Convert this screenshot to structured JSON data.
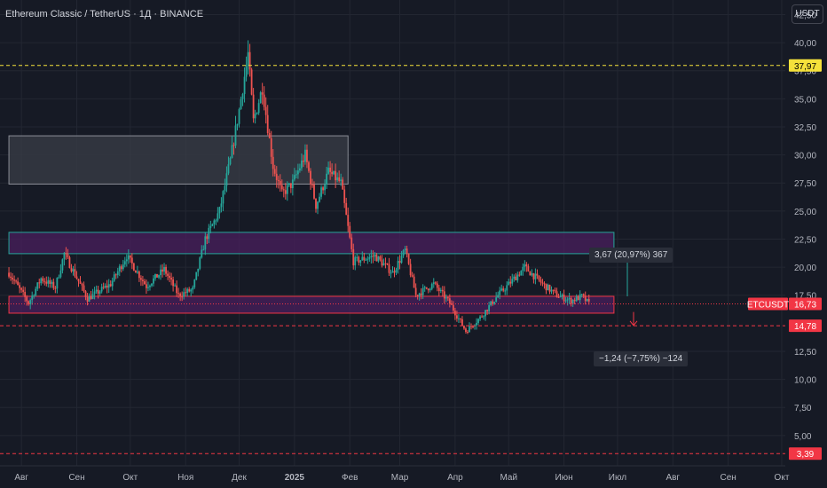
{
  "header": {
    "title": "Ethereum Classic / TetherUS · 1Д · BINANCE",
    "currency_button": "USDT"
  },
  "measure_up": {
    "label": "3,67 (20,97%) 367"
  },
  "measure_down": {
    "label": "−1,24 (−7,75%) −124"
  },
  "price_tags": [
    {
      "text": "37,97",
      "price": 37.97,
      "bg": "#f5e13b",
      "fg": "#000000"
    },
    {
      "text": "16,73",
      "price": 16.73,
      "bg": "#f23645",
      "fg": "#ffffff",
      "prefix": "ETCUSDT"
    },
    {
      "text": "14,78",
      "price": 14.78,
      "bg": "#f23645",
      "fg": "#ffffff"
    },
    {
      "text": "3,39",
      "price": 3.39,
      "bg": "#f23645",
      "fg": "#ffffff"
    }
  ],
  "colors": {
    "up": "#26a69a",
    "down": "#ef5350",
    "background": "#161a25",
    "zone_purple": "#4a1f5e",
    "zone_gray": "#3a3d47"
  },
  "chart_data": {
    "type": "candlestick",
    "title": "Ethereum Classic / TetherUS · 1Д · BINANCE",
    "ylim": [
      2.3,
      43.8
    ],
    "y_ticks": [
      {
        "value": 42.5,
        "label": "42,50"
      },
      {
        "value": 40,
        "label": "40,00"
      },
      {
        "value": 37.5,
        "label": "37,50"
      },
      {
        "value": 35,
        "label": "35,00"
      },
      {
        "value": 32.5,
        "label": "32,50"
      },
      {
        "value": 30,
        "label": "30,00"
      },
      {
        "value": 27.5,
        "label": "27,50"
      },
      {
        "value": 25,
        "label": "25,00"
      },
      {
        "value": 22.5,
        "label": "22,50"
      },
      {
        "value": 20,
        "label": "20,00"
      },
      {
        "value": 17.5,
        "label": "17,50"
      },
      {
        "value": 12.5,
        "label": "12,50"
      },
      {
        "value": 10,
        "label": "10,00"
      },
      {
        "value": 7.5,
        "label": "7,50"
      },
      {
        "value": 5,
        "label": "5,00"
      }
    ],
    "x_ticks": [
      {
        "label": "Авг",
        "date": "2024-08-01"
      },
      {
        "label": "Сен",
        "date": "2024-09-01"
      },
      {
        "label": "Окт",
        "date": "2024-10-01"
      },
      {
        "label": "Ноя",
        "date": "2024-11-01"
      },
      {
        "label": "Дек",
        "date": "2024-12-01"
      },
      {
        "label": "2025",
        "date": "2025-01-01"
      },
      {
        "label": "Фев",
        "date": "2025-02-01"
      },
      {
        "label": "Мар",
        "date": "2025-03-01"
      },
      {
        "label": "Апр",
        "date": "2025-04-01"
      },
      {
        "label": "Май",
        "date": "2025-05-01"
      },
      {
        "label": "Июн",
        "date": "2025-06-01"
      },
      {
        "label": "Июл",
        "date": "2025-07-01"
      },
      {
        "label": "Авг",
        "date": "2025-08-01"
      },
      {
        "label": "Сен",
        "date": "2025-09-01"
      },
      {
        "label": "Окт",
        "date": "2025-10-01"
      }
    ],
    "price_path": [
      [
        "2024-07-25",
        19.5
      ],
      [
        "2024-08-05",
        16.8
      ],
      [
        "2024-08-12",
        19.0
      ],
      [
        "2024-08-20",
        18.2
      ],
      [
        "2024-08-25",
        21.2
      ],
      [
        "2024-09-07",
        17.2
      ],
      [
        "2024-09-20",
        18.5
      ],
      [
        "2024-09-29",
        21.0
      ],
      [
        "2024-10-10",
        18.3
      ],
      [
        "2024-10-20",
        19.8
      ],
      [
        "2024-10-28",
        17.5
      ],
      [
        "2024-11-05",
        18.0
      ],
      [
        "2024-11-12",
        22.5
      ],
      [
        "2024-11-20",
        25.0
      ],
      [
        "2024-11-26",
        29.5
      ],
      [
        "2024-12-01",
        34.0
      ],
      [
        "2024-12-06",
        39.0
      ],
      [
        "2024-12-09",
        33.0
      ],
      [
        "2024-12-14",
        36.0
      ],
      [
        "2024-12-20",
        29.0
      ],
      [
        "2024-12-25",
        26.5
      ],
      [
        "2024-12-31",
        27.5
      ],
      [
        "2025-01-07",
        30.0
      ],
      [
        "2025-01-13",
        25.5
      ],
      [
        "2025-01-20",
        28.5
      ],
      [
        "2025-01-27",
        27.5
      ],
      [
        "2025-02-03",
        20.5
      ],
      [
        "2025-02-15",
        21.0
      ],
      [
        "2025-02-25",
        19.5
      ],
      [
        "2025-03-04",
        21.5
      ],
      [
        "2025-03-10",
        17.5
      ],
      [
        "2025-03-20",
        18.5
      ],
      [
        "2025-03-29",
        16.8
      ],
      [
        "2025-04-07",
        14.3
      ],
      [
        "2025-04-15",
        15.5
      ],
      [
        "2025-04-25",
        17.5
      ],
      [
        "2025-04-30",
        18.3
      ],
      [
        "2025-05-10",
        20.0
      ],
      [
        "2025-05-20",
        18.5
      ],
      [
        "2025-05-28",
        17.5
      ],
      [
        "2025-06-05",
        17.0
      ],
      [
        "2025-06-11",
        17.4
      ],
      [
        "2025-06-15",
        16.73
      ]
    ],
    "levels": [
      {
        "price": 37.97,
        "color": "#f5e13b",
        "style": "dashed"
      },
      {
        "price": 14.78,
        "color": "#f23645",
        "style": "dashed"
      },
      {
        "price": 3.39,
        "color": "#f23645",
        "style": "dashed"
      }
    ],
    "zones": [
      {
        "from": "2024-07-25",
        "to": "2025-01-31",
        "top": 31.7,
        "bottom": 27.4,
        "fill": "#3a3d47",
        "stroke": "#8a8d96"
      },
      {
        "from": "2024-07-25",
        "to": "2025-06-29",
        "top": 23.1,
        "bottom": 21.2,
        "fill": "#4a1f5e",
        "stroke": "#26a69a"
      },
      {
        "from": "2024-07-25",
        "to": "2025-06-29",
        "top": 17.4,
        "bottom": 15.9,
        "fill": "#4a1f5e",
        "stroke": "#f23645"
      }
    ],
    "grid": true
  }
}
